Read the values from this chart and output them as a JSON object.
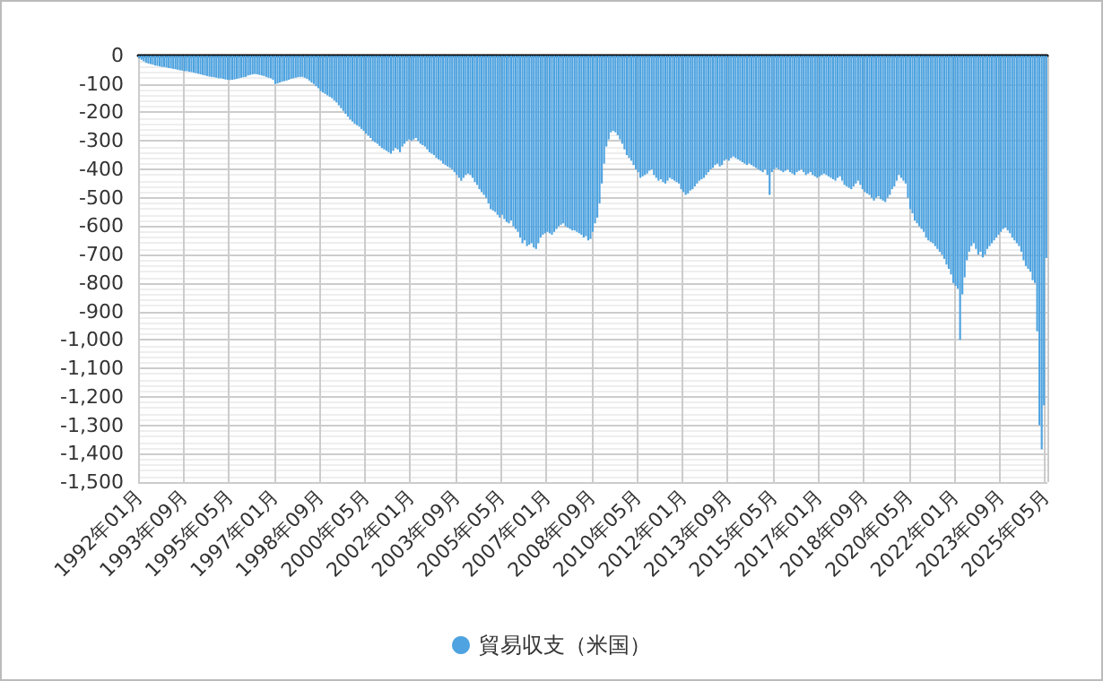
{
  "chart_data": {
    "type": "bar",
    "categories": [
      "1992年01月",
      null,
      null,
      null,
      null,
      null,
      null,
      null,
      null,
      null,
      null,
      null,
      null,
      null,
      null,
      null,
      null,
      null,
      null,
      null,
      "1993年09月",
      null,
      null,
      null,
      null,
      null,
      null,
      null,
      null,
      null,
      null,
      null,
      null,
      null,
      null,
      null,
      null,
      null,
      null,
      null,
      "1995年05月",
      null,
      null,
      null,
      null,
      null,
      null,
      null,
      null,
      null,
      null,
      null,
      null,
      null,
      null,
      null,
      null,
      null,
      null,
      null,
      "1997年01月",
      null,
      null,
      null,
      null,
      null,
      null,
      null,
      null,
      null,
      null,
      null,
      null,
      null,
      null,
      null,
      null,
      null,
      null,
      null,
      "1998年09月",
      null,
      null,
      null,
      null,
      null,
      null,
      null,
      null,
      null,
      null,
      null,
      null,
      null,
      null,
      null,
      null,
      null,
      null,
      null,
      "2000年05月",
      null,
      null,
      null,
      null,
      null,
      null,
      null,
      null,
      null,
      null,
      null,
      null,
      null,
      null,
      null,
      null,
      null,
      null,
      null,
      "2002年01月",
      null,
      null,
      null,
      null,
      null,
      null,
      null,
      null,
      null,
      null,
      null,
      null,
      null,
      null,
      null,
      null,
      null,
      null,
      null,
      "2003年09月",
      null,
      null,
      null,
      null,
      null,
      null,
      null,
      null,
      null,
      null,
      null,
      null,
      null,
      null,
      null,
      null,
      null,
      null,
      null,
      "2005年05月",
      null,
      null,
      null,
      null,
      null,
      null,
      null,
      null,
      null,
      null,
      null,
      null,
      null,
      null,
      null,
      null,
      null,
      null,
      null,
      "2007年01月",
      null,
      null,
      null,
      null,
      null,
      null,
      null,
      null,
      null,
      null,
      null,
      null,
      null,
      null,
      null,
      null,
      null,
      null,
      null,
      "2008年09月",
      null,
      null,
      null,
      null,
      null,
      null,
      null,
      null,
      null,
      null,
      null,
      null,
      null,
      null,
      null,
      null,
      null,
      null,
      null,
      "2010年05月",
      null,
      null,
      null,
      null,
      null,
      null,
      null,
      null,
      null,
      null,
      null,
      null,
      null,
      null,
      null,
      null,
      null,
      null,
      null,
      "2012年01月",
      null,
      null,
      null,
      null,
      null,
      null,
      null,
      null,
      null,
      null,
      null,
      null,
      null,
      null,
      null,
      null,
      null,
      null,
      null,
      "2013年09月",
      null,
      null,
      null,
      null,
      null,
      null,
      null,
      null,
      null,
      null,
      null,
      null,
      null,
      null,
      null,
      null,
      null,
      null,
      null,
      "2015年05月",
      null,
      null,
      null,
      null,
      null,
      null,
      null,
      null,
      null,
      null,
      null,
      null,
      null,
      null,
      null,
      null,
      null,
      null,
      null,
      "2017年01月",
      null,
      null,
      null,
      null,
      null,
      null,
      null,
      null,
      null,
      null,
      null,
      null,
      null,
      null,
      null,
      null,
      null,
      null,
      null,
      "2018年09月",
      null,
      null,
      null,
      null,
      null,
      null,
      null,
      null,
      null,
      null,
      null,
      null,
      null,
      null,
      null,
      null,
      null,
      null,
      null,
      "2020年05月",
      null,
      null,
      null,
      null,
      null,
      null,
      null,
      null,
      null,
      null,
      null,
      null,
      null,
      null,
      null,
      null,
      null,
      null,
      null,
      "2022年01月",
      null,
      null,
      null,
      null,
      null,
      null,
      null,
      null,
      null,
      null,
      null,
      null,
      null,
      null,
      null,
      null,
      null,
      null,
      null,
      "2023年09月",
      null,
      null,
      null,
      null,
      null,
      null,
      null,
      null,
      null,
      null,
      null,
      null,
      null,
      null,
      null,
      null,
      null,
      null,
      null,
      "2025年05月"
    ],
    "series": [
      {
        "name": "貿易収支（米国）",
        "color": "#4ea3e0",
        "values": [
          -10,
          -15,
          -20,
          -25,
          -28,
          -30,
          -32,
          -35,
          -36,
          -38,
          -40,
          -40,
          -42,
          -44,
          -45,
          -47,
          -48,
          -50,
          -52,
          -53,
          -55,
          -55,
          -57,
          -58,
          -60,
          -62,
          -64,
          -66,
          -68,
          -70,
          -72,
          -74,
          -75,
          -76,
          -78,
          -80,
          -80,
          -82,
          -84,
          -85,
          -86,
          -85,
          -84,
          -82,
          -80,
          -78,
          -76,
          -75,
          -70,
          -68,
          -66,
          -65,
          -66,
          -68,
          -70,
          -72,
          -75,
          -78,
          -80,
          -85,
          -100,
          -98,
          -95,
          -92,
          -90,
          -88,
          -85,
          -82,
          -80,
          -78,
          -76,
          -75,
          -75,
          -78,
          -82,
          -88,
          -95,
          -100,
          -108,
          -115,
          -125,
          -130,
          -135,
          -140,
          -145,
          -150,
          -158,
          -165,
          -175,
          -185,
          -195,
          -205,
          -215,
          -225,
          -232,
          -240,
          -245,
          -250,
          -258,
          -265,
          -275,
          -282,
          -290,
          -300,
          -305,
          -310,
          -318,
          -325,
          -330,
          -335,
          -340,
          -345,
          -335,
          -325,
          -330,
          -340,
          -320,
          -310,
          -300,
          -295,
          -300,
          -295,
          -290,
          -300,
          -310,
          -315,
          -320,
          -330,
          -340,
          -345,
          -350,
          -360,
          -365,
          -370,
          -380,
          -385,
          -390,
          -395,
          -400,
          -410,
          -420,
          -430,
          -440,
          -430,
          -420,
          -415,
          -420,
          -430,
          -445,
          -455,
          -470,
          -480,
          -490,
          -500,
          -520,
          -540,
          -545,
          -550,
          -560,
          -570,
          -560,
          -575,
          -585,
          -590,
          -580,
          -600,
          -610,
          -620,
          -640,
          -660,
          -650,
          -670,
          -665,
          -660,
          -675,
          -680,
          -660,
          -640,
          -630,
          -625,
          -620,
          -625,
          -630,
          -620,
          -610,
          -600,
          -595,
          -590,
          -600,
          -605,
          -610,
          -615,
          -615,
          -620,
          -625,
          -630,
          -640,
          -635,
          -650,
          -645,
          -620,
          -590,
          -570,
          -520,
          -450,
          -380,
          -320,
          -295,
          -270,
          -265,
          -270,
          -280,
          -295,
          -310,
          -330,
          -350,
          -360,
          -370,
          -385,
          -400,
          -410,
          -430,
          -425,
          -420,
          -415,
          -405,
          -400,
          -420,
          -430,
          -440,
          -435,
          -445,
          -450,
          -440,
          -430,
          -435,
          -440,
          -445,
          -450,
          -470,
          -480,
          -490,
          -485,
          -475,
          -470,
          -460,
          -450,
          -440,
          -435,
          -430,
          -420,
          -410,
          -400,
          -395,
          -385,
          -380,
          -390,
          -385,
          -370,
          -365,
          -370,
          -360,
          -355,
          -360,
          -365,
          -370,
          -375,
          -380,
          -385,
          -380,
          -385,
          -390,
          -395,
          -400,
          -405,
          -410,
          -400,
          -420,
          -490,
          -410,
          -400,
          -395,
          -400,
          -405,
          -410,
          -405,
          -400,
          -410,
          -415,
          -420,
          -410,
          -405,
          -400,
          -410,
          -420,
          -415,
          -410,
          -420,
          -425,
          -430,
          -425,
          -420,
          -415,
          -420,
          -425,
          -430,
          -435,
          -440,
          -430,
          -425,
          -440,
          -455,
          -460,
          -465,
          -470,
          -460,
          -450,
          -440,
          -455,
          -470,
          -480,
          -485,
          -490,
          -500,
          -510,
          -500,
          -495,
          -505,
          -510,
          -515,
          -500,
          -490,
          -470,
          -460,
          -440,
          -420,
          -430,
          -440,
          -450,
          -500,
          -540,
          -555,
          -580,
          -590,
          -600,
          -610,
          -620,
          -640,
          -650,
          -655,
          -660,
          -670,
          -680,
          -690,
          -700,
          -715,
          -735,
          -750,
          -770,
          -800,
          -810,
          -820,
          -1000,
          -840,
          -780,
          -720,
          -690,
          -670,
          -660,
          -680,
          -700,
          -690,
          -710,
          -700,
          -680,
          -670,
          -660,
          -650,
          -640,
          -630,
          -620,
          -610,
          -605,
          -615,
          -625,
          -640,
          -650,
          -660,
          -670,
          -690,
          -720,
          -740,
          -750,
          -760,
          -790,
          -800,
          -970,
          -1300,
          -1385,
          -1230,
          -712
        ]
      }
    ],
    "ylim": [
      -1500,
      0
    ],
    "yticks": [
      {
        "value": -1500,
        "label": "-1,500"
      },
      {
        "value": -1400,
        "label": "-1,400"
      },
      {
        "value": -1300,
        "label": "-1,300"
      },
      {
        "value": -1200,
        "label": "-1,200"
      },
      {
        "value": -1100,
        "label": "-1,100"
      },
      {
        "value": -1000,
        "label": "-1,000"
      },
      -900,
      -800,
      -700,
      -600,
      -500,
      -400,
      -300,
      -200,
      -100,
      0
    ],
    "grid": true,
    "legend": "bottom"
  }
}
